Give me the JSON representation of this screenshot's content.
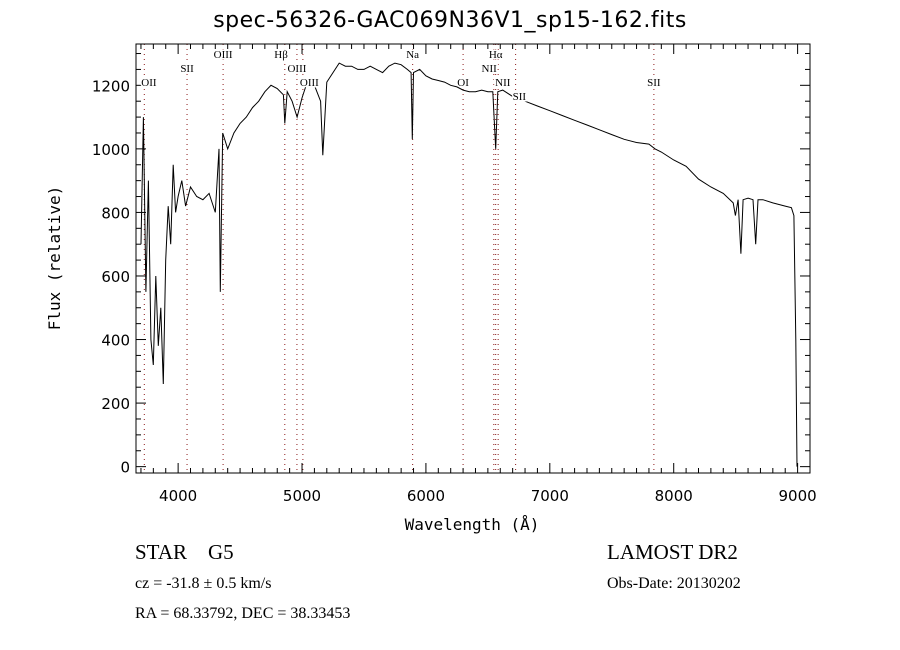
{
  "chart_data": {
    "type": "line",
    "title": "spec-56326-GAC069N36V1_sp15-162.fits",
    "xlabel": "Wavelength (Å)",
    "ylabel": "Flux (relative)",
    "xlim": [
      3660,
      9100
    ],
    "ylim": [
      -20,
      1330
    ],
    "xticks": [
      4000,
      5000,
      6000,
      7000,
      8000,
      9000
    ],
    "xtick_labels": [
      "4000",
      "5000",
      "6000",
      "7000",
      "8000",
      "9000"
    ],
    "yticks": [
      0,
      200,
      400,
      600,
      800,
      1000,
      1200
    ],
    "ytick_labels": [
      "0",
      "200",
      "400",
      "600",
      "800",
      "1000",
      "1200"
    ],
    "grid": false,
    "series": [
      {
        "name": "spectrum",
        "x": [
          3700,
          3720,
          3740,
          3760,
          3780,
          3800,
          3820,
          3840,
          3860,
          3880,
          3900,
          3920,
          3940,
          3960,
          3980,
          4000,
          4030,
          4060,
          4100,
          4150,
          4200,
          4250,
          4300,
          4330,
          4340,
          4360,
          4400,
          4450,
          4500,
          4550,
          4600,
          4650,
          4700,
          4750,
          4800,
          4850,
          4861,
          4880,
          4920,
          4960,
          5000,
          5050,
          5100,
          5150,
          5168,
          5200,
          5250,
          5300,
          5350,
          5400,
          5450,
          5500,
          5550,
          5600,
          5650,
          5700,
          5750,
          5800,
          5850,
          5880,
          5890,
          5900,
          5950,
          6000,
          6050,
          6100,
          6150,
          6200,
          6250,
          6300,
          6350,
          6400,
          6450,
          6500,
          6540,
          6563,
          6580,
          6620,
          6700,
          6800,
          6900,
          7000,
          7100,
          7200,
          7300,
          7400,
          7500,
          7600,
          7700,
          7800,
          7850,
          7900,
          8000,
          8100,
          8200,
          8300,
          8400,
          8480,
          8498,
          8520,
          8542,
          8560,
          8600,
          8640,
          8662,
          8680,
          8720,
          8800,
          8850,
          8900,
          8950,
          8970,
          8985,
          8995
        ],
        "values": [
          700,
          1100,
          550,
          900,
          400,
          320,
          600,
          380,
          500,
          260,
          650,
          820,
          700,
          950,
          800,
          850,
          900,
          820,
          880,
          850,
          840,
          860,
          800,
          1000,
          550,
          1050,
          1000,
          1050,
          1080,
          1100,
          1130,
          1150,
          1180,
          1200,
          1190,
          1170,
          1080,
          1180,
          1150,
          1100,
          1160,
          1220,
          1200,
          1150,
          980,
          1210,
          1240,
          1270,
          1260,
          1260,
          1250,
          1250,
          1260,
          1250,
          1240,
          1260,
          1270,
          1265,
          1250,
          1240,
          1030,
          1240,
          1250,
          1230,
          1220,
          1215,
          1210,
          1200,
          1195,
          1185,
          1180,
          1180,
          1185,
          1180,
          1180,
          1000,
          1180,
          1185,
          1165,
          1150,
          1135,
          1120,
          1105,
          1090,
          1075,
          1060,
          1045,
          1030,
          1020,
          1015,
          1000,
          990,
          965,
          945,
          905,
          880,
          860,
          830,
          790,
          840,
          670,
          840,
          845,
          840,
          700,
          840,
          840,
          830,
          825,
          820,
          815,
          790,
          400,
          0
        ]
      }
    ],
    "line_markers": [
      {
        "label": "OII",
        "wavelength": 3727
      },
      {
        "label": "SII",
        "wavelength": 4072
      },
      {
        "label": "OIII",
        "wavelength": 4363
      },
      {
        "label": "Hβ",
        "wavelength": 4861
      },
      {
        "label": "OIII",
        "wavelength": 4959
      },
      {
        "label": "OIII",
        "wavelength": 5007
      },
      {
        "label": "Na",
        "wavelength": 5893
      },
      {
        "label": "OI",
        "wavelength": 6300
      },
      {
        "label": "NII",
        "wavelength": 6548
      },
      {
        "label": "Hα",
        "wavelength": 6563
      },
      {
        "label": "NII",
        "wavelength": 6583
      },
      {
        "label": "SII",
        "wavelength": 6724
      },
      {
        "label": "SII",
        "wavelength": 7840
      }
    ]
  },
  "info": {
    "class": "STAR",
    "subclass": "G5",
    "survey": "LAMOST DR2",
    "cz": "cz = -31.8 ± 0.5 km/s",
    "obs_date": "Obs-Date: 20130202",
    "coords": "RA =  68.33792, DEC =  38.33453"
  },
  "colors": {
    "axis": "#000000",
    "spectrum": "#000000",
    "marker": "#8b1a1a",
    "background": "#ffffff"
  }
}
